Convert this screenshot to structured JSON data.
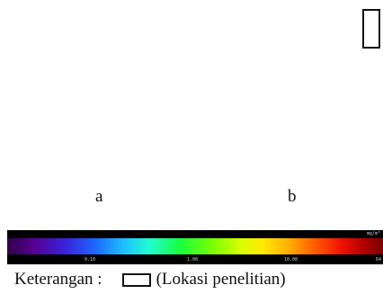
{
  "panels": {
    "a": "a",
    "b": "b"
  },
  "scale": {
    "unit": "mg/m³",
    "ticks": [
      "0.10",
      "1.00",
      "10.00",
      "64"
    ],
    "colors": [
      "#30004a",
      "#3a1fd6",
      "#1cc0ff",
      "#18ff40",
      "#d8ff00",
      "#ff5a00",
      "#7a0000"
    ]
  },
  "legend": {
    "title": "Keterangan :",
    "item_label": "(Lokasi penelitian)",
    "item_icon": "rectangle-outline-icon"
  }
}
